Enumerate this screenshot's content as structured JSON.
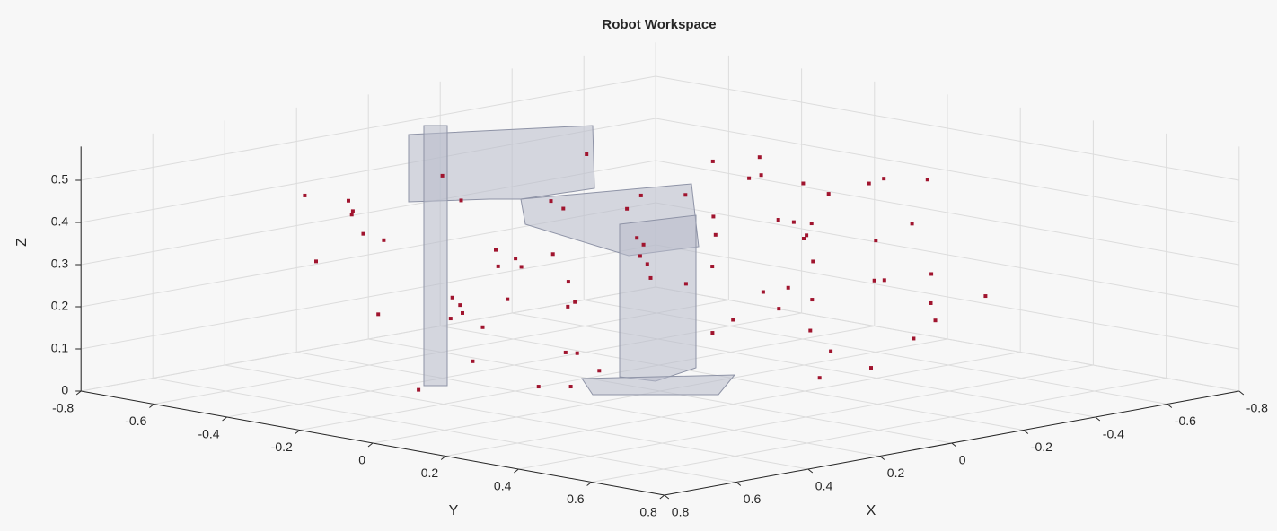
{
  "chart_data": {
    "type": "scatter3d",
    "title": "Robot Workspace",
    "xlabel": "X",
    "ylabel": "Y",
    "zlabel": "Z",
    "color": "#a0142e",
    "xlim": [
      -0.8,
      0.8
    ],
    "ylim": [
      -0.8,
      0.8
    ],
    "zlim": [
      0,
      0.58
    ],
    "xticks": [
      -0.8,
      -0.6,
      -0.4,
      -0.2,
      0,
      0.2,
      0.4,
      0.6,
      0.8
    ],
    "yticks": [
      -0.8,
      -0.6,
      -0.4,
      -0.2,
      0,
      0.2,
      0.4,
      0.6,
      0.8
    ],
    "zticks": [
      0,
      0.1,
      0.2,
      0.3,
      0.4,
      0.5
    ],
    "grid": true,
    "x": [
      0.45,
      0.5,
      0.38,
      0.3,
      0.42,
      0.55,
      0.2,
      0.25,
      0.1,
      0.05,
      -0.05,
      -0.1,
      -0.2,
      -0.25,
      -0.3,
      -0.35,
      -0.4,
      -0.45,
      -0.5,
      -0.55,
      0.35,
      0.28,
      0.15,
      0.0,
      -0.12,
      -0.22,
      -0.32,
      -0.42,
      -0.5,
      -0.6,
      0.48,
      0.4,
      0.32,
      0.18,
      0.08,
      -0.02,
      -0.15,
      -0.28,
      -0.38,
      -0.48,
      0.52,
      0.44,
      0.36,
      0.26,
      0.12,
      -0.04,
      -0.18,
      -0.3,
      -0.4,
      -0.52,
      0.3,
      0.22,
      0.1,
      -0.06,
      -0.2,
      -0.34,
      -0.46,
      -0.56,
      0.4,
      0.16,
      -0.08,
      -0.26,
      -0.44,
      0.34,
      0.06,
      -0.14,
      -0.36,
      0.24,
      -0.02,
      -0.3,
      0.46,
      0.14,
      -0.1,
      -0.4,
      0.2,
      -0.24,
      0.38,
      0.02,
      -0.16,
      -0.5
    ],
    "y": [
      -0.5,
      -0.35,
      -0.2,
      -0.55,
      -0.1,
      0.0,
      -0.4,
      -0.15,
      -0.45,
      -0.25,
      -0.5,
      -0.3,
      -0.45,
      -0.1,
      -0.35,
      -0.2,
      0.0,
      -0.3,
      -0.1,
      0.05,
      0.1,
      0.25,
      0.3,
      0.2,
      0.35,
      0.15,
      0.3,
      0.2,
      0.25,
      0.1,
      -0.3,
      -0.42,
      0.05,
      -0.05,
      0.15,
      -0.4,
      -0.2,
      0.05,
      -0.05,
      -0.2,
      -0.15,
      0.2,
      -0.5,
      0.4,
      -0.3,
      0.38,
      0.1,
      0.4,
      0.35,
      -0.05,
      -0.25,
      0.05,
      0.45,
      -0.15,
      0.22,
      0.42,
      0.12,
      -0.15,
      -0.05,
      -0.6,
      0.5,
      -0.55,
      0.3,
      0.3,
      -0.2,
      0.45,
      -0.4,
      -0.25,
      0.05,
      0.12,
      0.12,
      0.55,
      -0.35,
      -0.15,
      0.48,
      -0.3,
      -0.6,
      -0.55,
      0.28,
      0.4
    ],
    "z": [
      0.3,
      0.45,
      0.2,
      0.38,
      0.12,
      0.27,
      0.48,
      0.33,
      0.15,
      0.42,
      0.25,
      0.5,
      0.1,
      0.36,
      0.22,
      0.46,
      0.3,
      0.18,
      0.4,
      0.28,
      0.08,
      0.35,
      0.44,
      0.2,
      0.13,
      0.39,
      0.26,
      0.47,
      0.17,
      0.32,
      0.21,
      0.37,
      0.49,
      0.11,
      0.29,
      0.23,
      0.41,
      0.16,
      0.34,
      0.45,
      0.06,
      0.31,
      0.43,
      0.24,
      0.19,
      0.36,
      0.5,
      0.14,
      0.27,
      0.38,
      0.46,
      0.09,
      0.33,
      0.4,
      0.22,
      0.18,
      0.44,
      0.26,
      0.35,
      0.29,
      0.12,
      0.2,
      0.48,
      0.4,
      0.07,
      0.31,
      0.23,
      0.15,
      0.47,
      0.37,
      0.1,
      0.25,
      0.19,
      0.42,
      0.34,
      0.28,
      0.43,
      0.14,
      0.05,
      0.21
    ]
  }
}
